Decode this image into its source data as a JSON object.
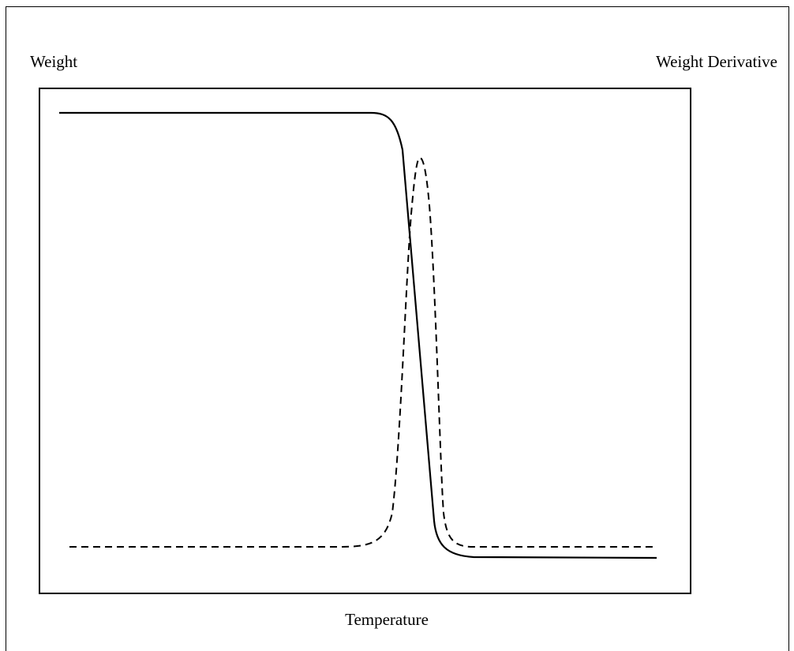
{
  "labels": {
    "left_axis": "Weight",
    "right_axis": "Weight Derivative",
    "x_axis": "Temperature"
  }
}
